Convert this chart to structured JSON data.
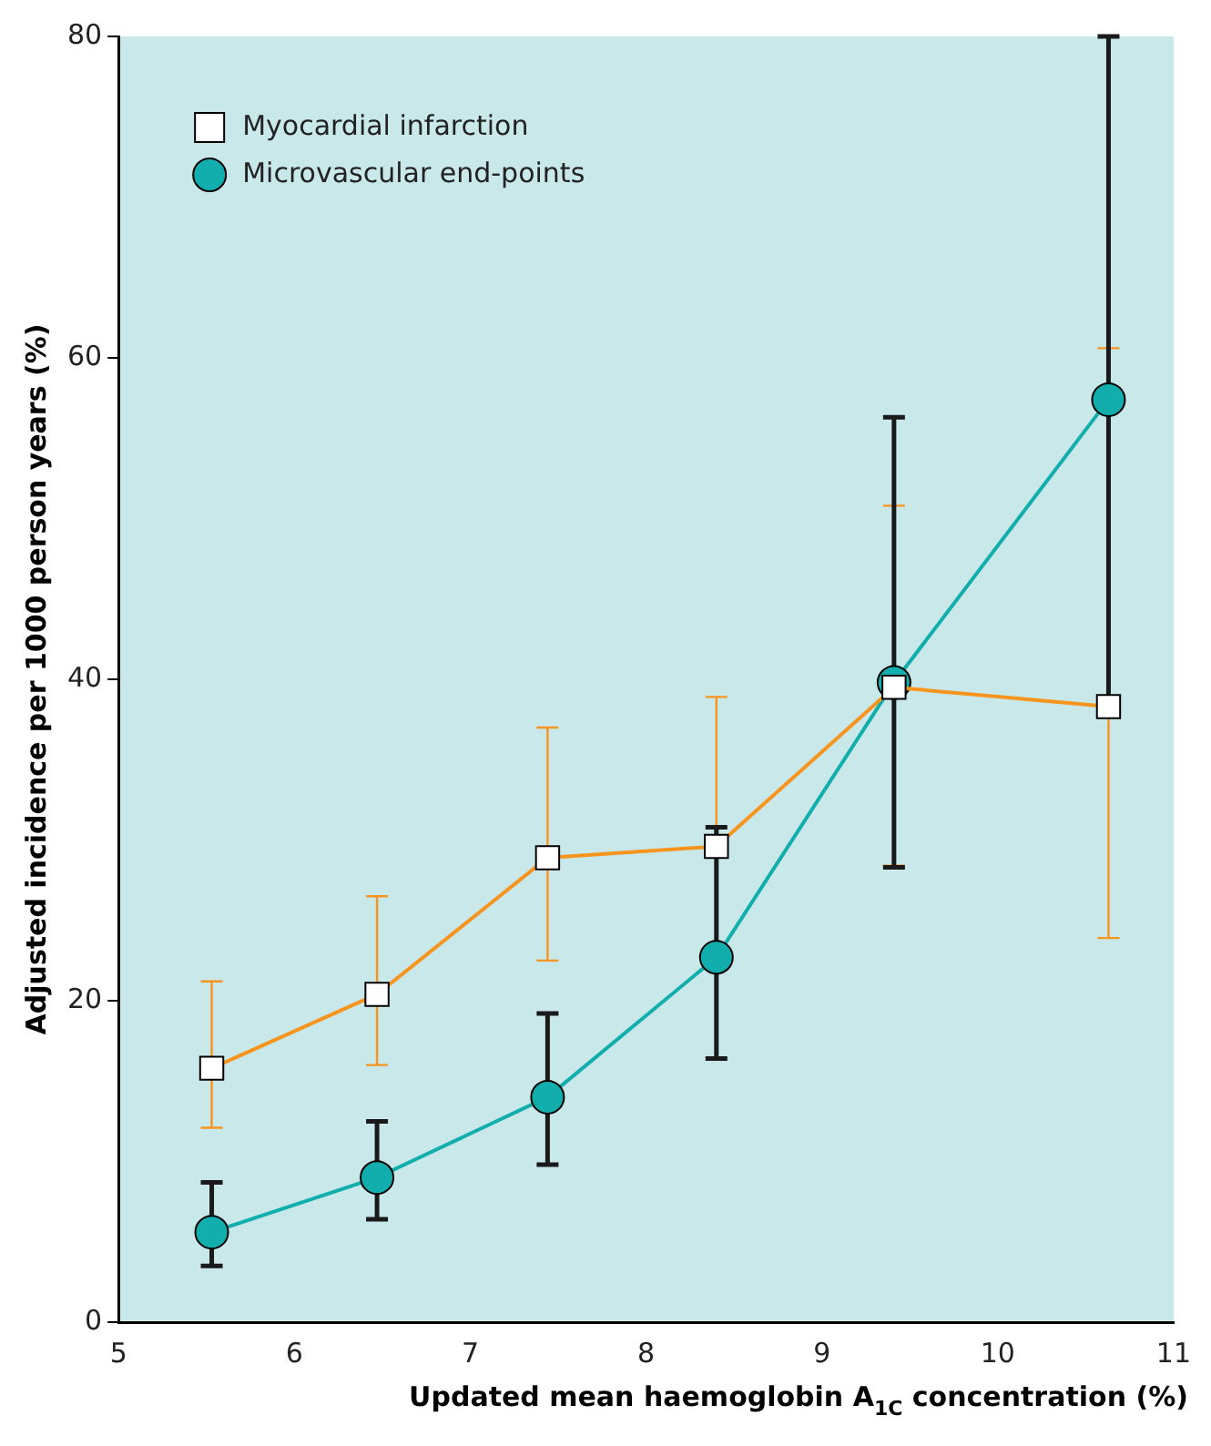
{
  "chart_data": {
    "type": "line",
    "xlabel": "Updated mean haemoglobin A$_{1C}$ concentration (%)",
    "ylabel": "Adjusted incidence per 1000 person years (%)",
    "xlim": [
      5,
      11
    ],
    "xticks": [
      5,
      6,
      7,
      8,
      9,
      10,
      11
    ],
    "ylim": [
      0,
      80
    ],
    "yticks": [
      0,
      20,
      40,
      60,
      80
    ],
    "grid": false,
    "legend": "top left",
    "line_style": "solid",
    "series": [
      {
        "name": "Myocardial infarction",
        "color": "#f7941d",
        "marker": "square",
        "x": [
          5.53,
          6.47,
          7.44,
          8.4,
          9.41,
          10.63
        ],
        "values": [
          15.8,
          20.4,
          28.9,
          29.6,
          39.5,
          38.3
        ],
        "errors": [
          [
            12.1,
            21.2
          ],
          [
            16.0,
            26.5
          ],
          [
            22.5,
            37.0
          ],
          [
            29.6,
            38.9
          ],
          [
            28.4,
            50.8
          ],
          [
            23.9,
            60.6
          ]
        ]
      },
      {
        "name": "Microvascular end-points",
        "color": "#12adad",
        "marker": "circle",
        "x": [
          5.53,
          6.47,
          7.44,
          8.4,
          9.41,
          10.63
        ],
        "values": [
          5.6,
          9.0,
          14.0,
          22.7,
          39.8,
          57.4
        ],
        "errors": [
          [
            3.5,
            8.7
          ],
          [
            6.4,
            12.5
          ],
          [
            9.8,
            19.2
          ],
          [
            16.4,
            30.8
          ],
          [
            28.3,
            56.3
          ],
          [
            38.0,
            80
          ]
        ]
      }
    ]
  }
}
